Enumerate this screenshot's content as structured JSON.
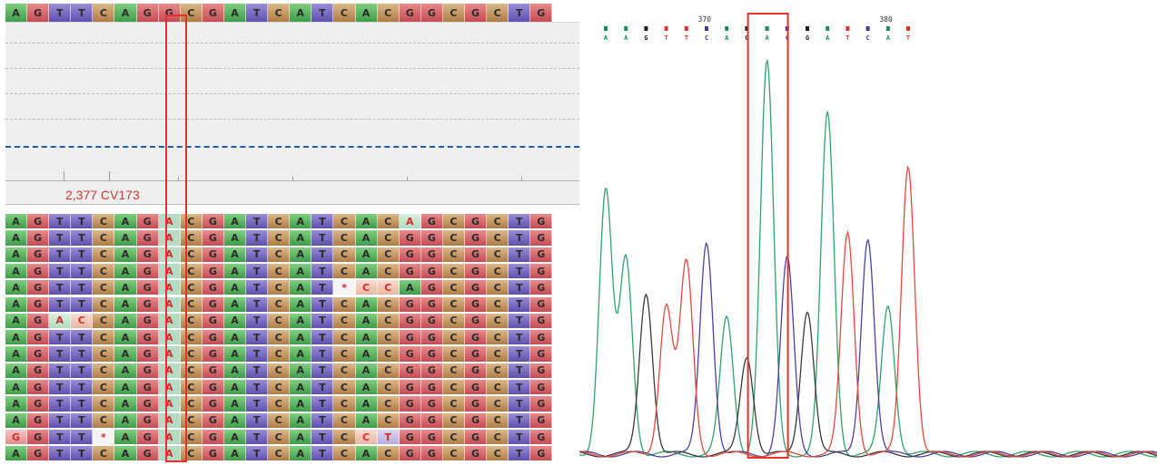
{
  "alignment": {
    "consensus": "AGTTCAGGCGATCATCACGGCGCTG",
    "reads": [
      "AGTTCAGACGATCATCACAGCGCTG",
      "AGTTCAGACGATCATCACGGCGCTG",
      "AGTTCAGACGATCATCACGGCGCTG",
      "AGTTCAGACGATCATCACGGCGCTG",
      "AGTTCAGACGATCAT*CCAGCGCTG",
      "AGTTCAGACGATCATCACGGCGCTG",
      "AGACCAGACGATCATCACGGCGCTG",
      "AGTTCAGACGATCATCACGGCGCTG",
      "AGTTCAGACGATCATCACGGCGCTG",
      "AGTTCAGACGATCATCACGGCGCTG",
      "AGTTCAGACGATCATCACGGCGCTG",
      "AGTTCAGACGATCATCACGGCGCTG",
      "AGTTCAGACGATCATCACGGCGCTG",
      "GGTT*AGACGATCATCCTGGCGCTG",
      "AGTTCAGACGATCATCACGGCGCTG"
    ],
    "mismatches": [
      [
        0,
        18
      ],
      [
        4,
        15
      ],
      [
        4,
        16
      ],
      [
        4,
        17
      ],
      [
        6,
        2
      ],
      [
        6,
        3
      ],
      [
        13,
        0
      ],
      [
        13,
        4
      ],
      [
        13,
        16
      ],
      [
        13,
        17
      ]
    ],
    "highlight_column": 7,
    "position_label": "2,377 CV173"
  },
  "chromatogram": {
    "position_numbers": [
      "370",
      "380"
    ],
    "bases": [
      "A",
      "A",
      "G",
      "T",
      "T",
      "C",
      "A",
      "G",
      "A",
      "C",
      "G",
      "A",
      "T",
      "C",
      "A",
      "T"
    ],
    "highlight_index": 8,
    "base_colors": {
      "A": "#1a8c55",
      "C": "#3f3a9f",
      "G": "#1e1e1e",
      "T": "#e2332b"
    },
    "trace_colors": {
      "A": "#2fa36e",
      "C": "#4a43a8",
      "G": "#3a3a3a",
      "T": "#e64a3c"
    }
  }
}
